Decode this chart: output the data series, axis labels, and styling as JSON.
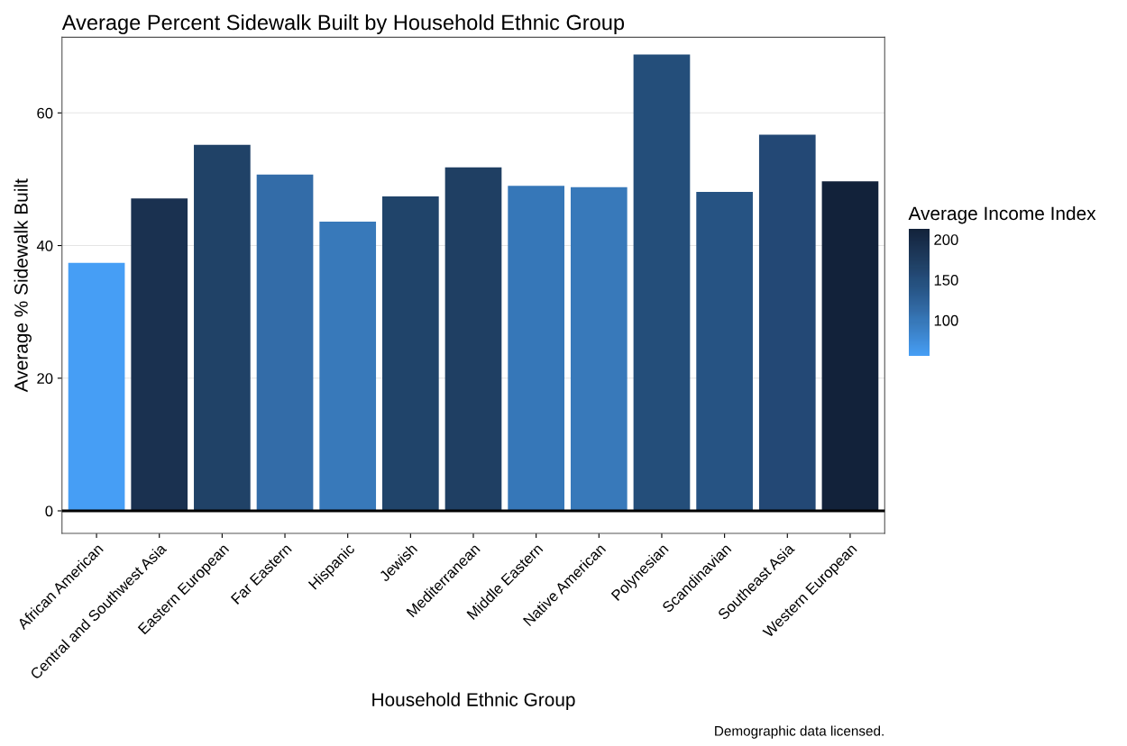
{
  "chart_data": {
    "type": "bar",
    "title": "Average Percent Sidewalk Built by Household Ethnic Group",
    "xlabel": "Household Ethnic Group",
    "ylabel": "Average % Sidewalk Built",
    "clabel": "Average Income Index",
    "categories": [
      "African American",
      "Central and Southwest Asia",
      "Eastern European",
      "Far Eastern",
      "Hispanic",
      "Jewish",
      "Mediterranean",
      "Middle Eastern",
      "Native American",
      "Polynesian",
      "Scandinavian",
      "Southeast Asia",
      "Western European"
    ],
    "values": [
      37.4,
      47.1,
      55.2,
      50.7,
      43.6,
      47.4,
      51.8,
      49.0,
      48.8,
      68.8,
      48.1,
      56.7,
      49.7
    ],
    "cvalues": [
      55,
      190,
      165,
      110,
      95,
      165,
      170,
      100,
      95,
      150,
      140,
      155,
      212
    ],
    "colors": [
      "#469ef5",
      "#1a3150",
      "#204267",
      "#336ca8",
      "#3879ba",
      "#20446a",
      "#1f3f63",
      "#3677b8",
      "#3879ba",
      "#244e7a",
      "#265383",
      "#234875",
      "#12223a"
    ],
    "clim": [
      55,
      212
    ],
    "cticks": [
      100,
      150,
      200
    ],
    "ylim": [
      -3.4,
      71.4
    ],
    "yticks": [
      0,
      20,
      40,
      60
    ],
    "grid": true,
    "ref_lines": [
      {
        "axis": "y",
        "value": 0,
        "color": "#000000"
      }
    ],
    "annotations": [
      "Demographic data licensed."
    ]
  }
}
